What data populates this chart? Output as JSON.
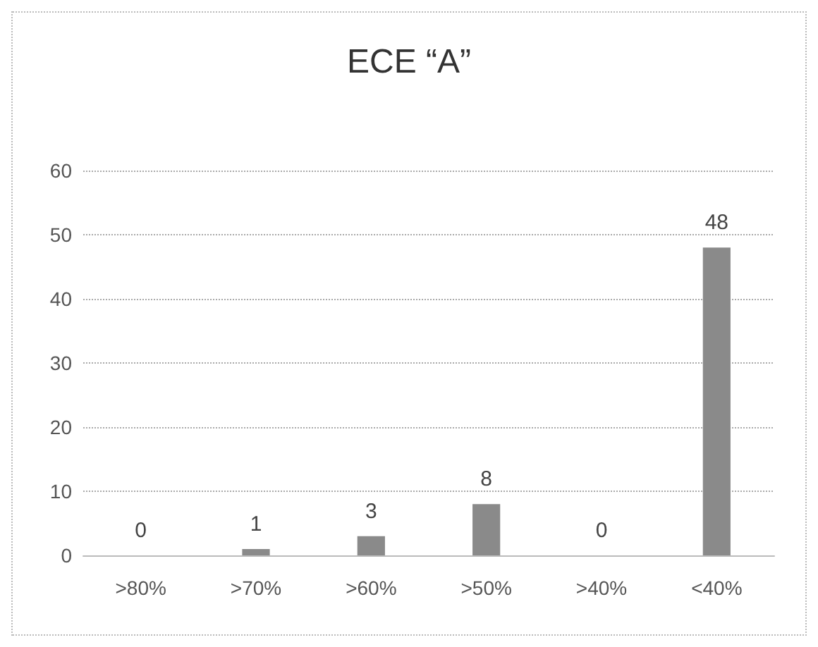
{
  "chart_data": {
    "type": "bar",
    "title": "ECE “A”",
    "categories": [
      ">80%",
      ">70%",
      ">60%",
      ">50%",
      ">40%",
      "<40%"
    ],
    "values": [
      0,
      1,
      3,
      8,
      0,
      48
    ],
    "color": "#8a8a8a",
    "ylim": [
      0,
      60
    ],
    "yticks": [
      0,
      10,
      20,
      30,
      40,
      50,
      60
    ],
    "grid": "y",
    "data_labels": true
  }
}
